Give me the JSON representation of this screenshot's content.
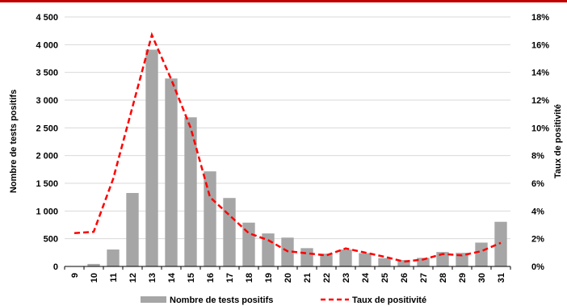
{
  "chart_data": {
    "type": "bar",
    "categories": [
      "9",
      "10",
      "11",
      "12",
      "13",
      "14",
      "15",
      "16",
      "17",
      "18",
      "19",
      "20",
      "21",
      "22",
      "23",
      "24",
      "25",
      "26",
      "27",
      "28",
      "29",
      "30",
      "31"
    ],
    "series": [
      {
        "name": "Nombre de tests positifs",
        "kind": "bar",
        "axis": "left",
        "color": "#a6a6a6",
        "values": [
          5,
          45,
          305,
          1325,
          3910,
          3390,
          2690,
          1715,
          1235,
          790,
          595,
          520,
          330,
          230,
          305,
          240,
          150,
          115,
          155,
          260,
          245,
          430,
          805
        ]
      },
      {
        "name": "Taux de positivité",
        "kind": "line",
        "axis": "right",
        "color": "#ff0000",
        "dash": "dashed",
        "values": [
          2.4,
          2.5,
          6.3,
          11.5,
          16.7,
          13.5,
          10.0,
          5.0,
          3.7,
          2.4,
          1.9,
          1.1,
          0.95,
          0.8,
          1.3,
          1.0,
          0.7,
          0.35,
          0.5,
          0.9,
          0.8,
          1.1,
          1.7
        ]
      }
    ],
    "ylabel": "Nombre de tests positifs",
    "y2label": "Taux de positivité",
    "ylim": [
      0,
      4500
    ],
    "y2lim": [
      0,
      18
    ],
    "yticks": [
      0,
      500,
      1000,
      1500,
      2000,
      2500,
      3000,
      3500,
      4000,
      4500
    ],
    "ytick_labels": [
      "0",
      "500",
      "1 000",
      "1 500",
      "2 000",
      "2 500",
      "3 000",
      "3 500",
      "4 000",
      "4 500"
    ],
    "y2ticks": [
      0,
      2,
      4,
      6,
      8,
      10,
      12,
      14,
      16,
      18
    ],
    "y2tick_labels": [
      "0%",
      "2%",
      "4%",
      "6%",
      "8%",
      "10%",
      "12%",
      "14%",
      "16%",
      "18%"
    ],
    "grid": true,
    "legend_position": "bottom"
  }
}
